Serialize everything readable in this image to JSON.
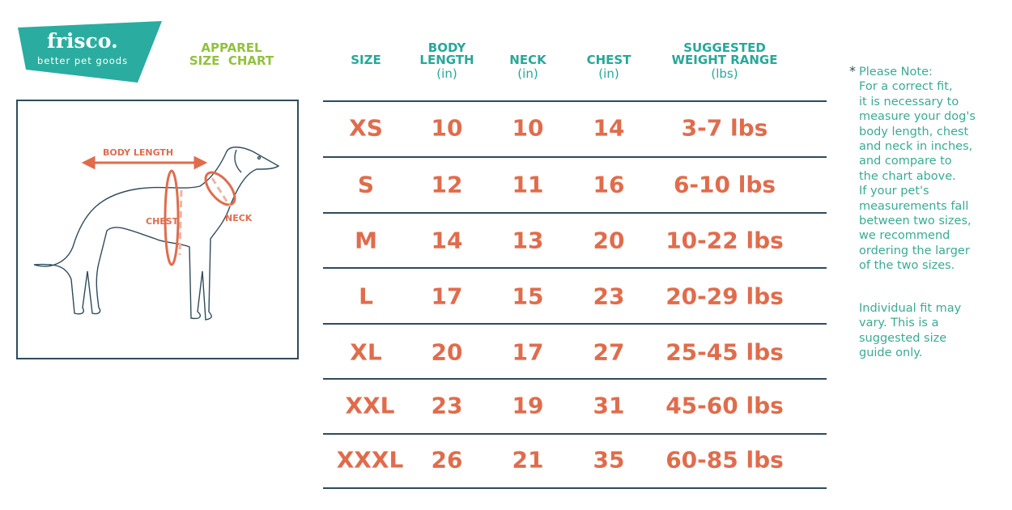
{
  "brand": {
    "name": "frisco.",
    "tagline": "better pet goods",
    "color": "#2aada0"
  },
  "title": {
    "line1": "APPAREL",
    "line2": "SIZE  CHART",
    "color": "#93c13d"
  },
  "illustration": {
    "body_length": "BODY LENGTH",
    "chest": "CHEST",
    "neck": "NECK",
    "accent": "#e06c4c"
  },
  "table": {
    "headers": [
      {
        "line1": "SIZE",
        "line2": "",
        "unit": ""
      },
      {
        "line1": "BODY",
        "line2": "LENGTH",
        "unit": "(in)"
      },
      {
        "line1": "NECK",
        "line2": "",
        "unit": "(in)"
      },
      {
        "line1": "CHEST",
        "line2": "",
        "unit": "(in)"
      },
      {
        "line1": "SUGGESTED",
        "line2": "WEIGHT RANGE",
        "unit": "(lbs)"
      }
    ],
    "rows": [
      [
        "XS",
        "10",
        "10",
        "14",
        "3-7 lbs"
      ],
      [
        "S",
        "12",
        "11",
        "16",
        "6-10 lbs"
      ],
      [
        "M",
        "14",
        "13",
        "20",
        "10-22 lbs"
      ],
      [
        "L",
        "17",
        "15",
        "23",
        "20-29 lbs"
      ],
      [
        "XL",
        "20",
        "17",
        "27",
        "25-45 lbs"
      ],
      [
        "XXL",
        "23",
        "19",
        "31",
        "45-60 lbs"
      ],
      [
        "XXXL",
        "26",
        "21",
        "35",
        "60-85 lbs"
      ]
    ]
  },
  "note": {
    "asterisk": "*",
    "text": "Please Note:\nFor a correct fit,\nit is necessary to\nmeasure your dog's\nbody length, chest\nand neck in inches,\nand compare to\nthe chart above.\nIf your pet's\nmeasurements fall\nbetween two sizes,\nwe recommend\nordering the larger\nof the two sizes.",
    "disclaimer": "Individual fit may\nvary. This is a\nsuggested size\nguide only."
  }
}
